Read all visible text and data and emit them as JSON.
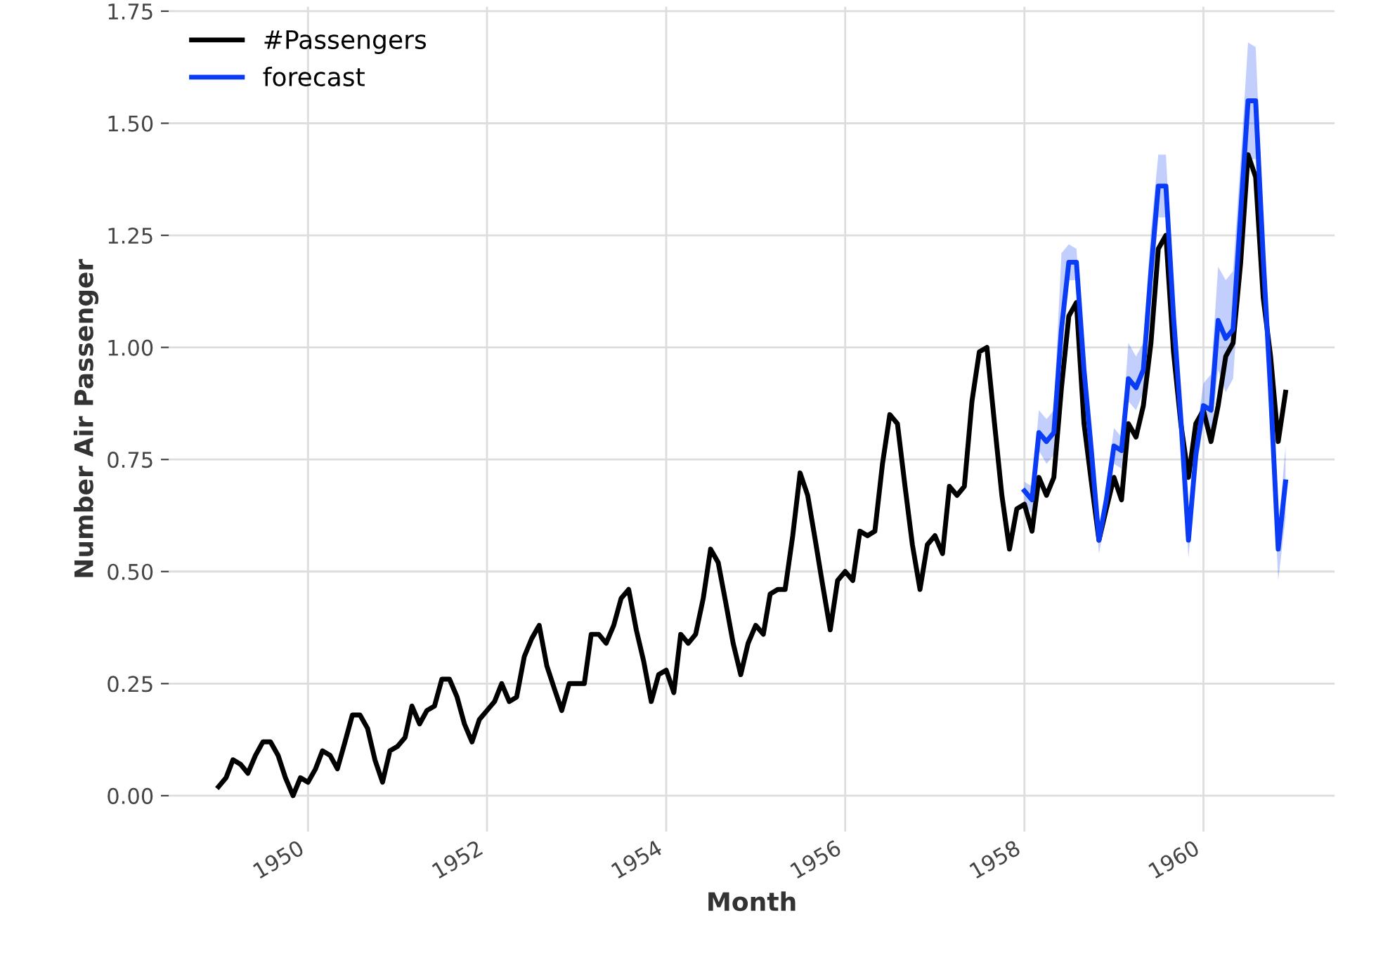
{
  "chart_data": {
    "type": "line",
    "xlabel": "Month",
    "ylabel": "Number Air Passenger",
    "x": [
      "1949-01",
      "1949-02",
      "1949-03",
      "1949-04",
      "1949-05",
      "1949-06",
      "1949-07",
      "1949-08",
      "1949-09",
      "1949-10",
      "1949-11",
      "1949-12",
      "1950-01",
      "1950-02",
      "1950-03",
      "1950-04",
      "1950-05",
      "1950-06",
      "1950-07",
      "1950-08",
      "1950-09",
      "1950-10",
      "1950-11",
      "1950-12",
      "1951-01",
      "1951-02",
      "1951-03",
      "1951-04",
      "1951-05",
      "1951-06",
      "1951-07",
      "1951-08",
      "1951-09",
      "1951-10",
      "1951-11",
      "1951-12",
      "1952-01",
      "1952-02",
      "1952-03",
      "1952-04",
      "1952-05",
      "1952-06",
      "1952-07",
      "1952-08",
      "1952-09",
      "1952-10",
      "1952-11",
      "1952-12",
      "1953-01",
      "1953-02",
      "1953-03",
      "1953-04",
      "1953-05",
      "1953-06",
      "1953-07",
      "1953-08",
      "1953-09",
      "1953-10",
      "1953-11",
      "1953-12",
      "1954-01",
      "1954-02",
      "1954-03",
      "1954-04",
      "1954-05",
      "1954-06",
      "1954-07",
      "1954-08",
      "1954-09",
      "1954-10",
      "1954-11",
      "1954-12",
      "1955-01",
      "1955-02",
      "1955-03",
      "1955-04",
      "1955-05",
      "1955-06",
      "1955-07",
      "1955-08",
      "1955-09",
      "1955-10",
      "1955-11",
      "1955-12",
      "1956-01",
      "1956-02",
      "1956-03",
      "1956-04",
      "1956-05",
      "1956-06",
      "1956-07",
      "1956-08",
      "1956-09",
      "1956-10",
      "1956-11",
      "1956-12",
      "1957-01",
      "1957-02",
      "1957-03",
      "1957-04",
      "1957-05",
      "1957-06",
      "1957-07",
      "1957-08",
      "1957-09",
      "1957-10",
      "1957-11",
      "1957-12",
      "1958-01",
      "1958-02",
      "1958-03",
      "1958-04",
      "1958-05",
      "1958-06",
      "1958-07",
      "1958-08",
      "1958-09",
      "1958-10",
      "1958-11",
      "1958-12",
      "1959-01",
      "1959-02",
      "1959-03",
      "1959-04",
      "1959-05",
      "1959-06",
      "1959-07",
      "1959-08",
      "1959-09",
      "1959-10",
      "1959-11",
      "1959-12",
      "1960-01",
      "1960-02",
      "1960-03",
      "1960-04",
      "1960-05",
      "1960-06",
      "1960-07",
      "1960-08",
      "1960-09",
      "1960-10",
      "1960-11",
      "1960-12"
    ],
    "series": [
      {
        "name": "#Passengers",
        "color": "#000000",
        "values": [
          0.02,
          0.04,
          0.08,
          0.07,
          0.05,
          0.09,
          0.12,
          0.12,
          0.09,
          0.04,
          0.0,
          0.04,
          0.03,
          0.06,
          0.1,
          0.09,
          0.06,
          0.12,
          0.18,
          0.18,
          0.15,
          0.08,
          0.03,
          0.1,
          0.11,
          0.13,
          0.2,
          0.16,
          0.19,
          0.2,
          0.26,
          0.26,
          0.22,
          0.16,
          0.12,
          0.17,
          0.19,
          0.21,
          0.25,
          0.21,
          0.22,
          0.31,
          0.35,
          0.38,
          0.29,
          0.24,
          0.19,
          0.25,
          0.25,
          0.25,
          0.36,
          0.36,
          0.34,
          0.38,
          0.44,
          0.46,
          0.37,
          0.3,
          0.21,
          0.27,
          0.28,
          0.23,
          0.36,
          0.34,
          0.36,
          0.44,
          0.55,
          0.52,
          0.43,
          0.34,
          0.27,
          0.34,
          0.38,
          0.36,
          0.45,
          0.46,
          0.46,
          0.58,
          0.72,
          0.67,
          0.57,
          0.47,
          0.37,
          0.48,
          0.5,
          0.48,
          0.59,
          0.58,
          0.59,
          0.74,
          0.85,
          0.83,
          0.69,
          0.56,
          0.46,
          0.56,
          0.58,
          0.54,
          0.69,
          0.67,
          0.69,
          0.88,
          0.99,
          1.0,
          0.83,
          0.67,
          0.55,
          0.64,
          0.65,
          0.59,
          0.71,
          0.67,
          0.71,
          0.91,
          1.07,
          1.1,
          0.83,
          0.7,
          0.57,
          0.64,
          0.71,
          0.66,
          0.83,
          0.8,
          0.87,
          1.01,
          1.22,
          1.25,
          0.99,
          0.83,
          0.71,
          0.83,
          0.86,
          0.79,
          0.87,
          0.98,
          1.01,
          1.19,
          1.43,
          1.38,
          1.11,
          0.98,
          0.79,
          0.9
        ]
      },
      {
        "name": "forecast",
        "color": "#0a3cf5",
        "x": [
          "1958-01",
          "1958-02",
          "1958-03",
          "1958-04",
          "1958-05",
          "1958-06",
          "1958-07",
          "1958-08",
          "1958-09",
          "1958-10",
          "1958-11",
          "1958-12",
          "1959-01",
          "1959-02",
          "1959-03",
          "1959-04",
          "1959-05",
          "1959-06",
          "1959-07",
          "1959-08",
          "1959-09",
          "1959-10",
          "1959-11",
          "1959-12",
          "1960-01",
          "1960-02",
          "1960-03",
          "1960-04",
          "1960-05",
          "1960-06",
          "1960-07",
          "1960-08",
          "1960-09",
          "1960-10",
          "1960-11",
          "1960-12"
        ],
        "values": [
          0.68,
          0.66,
          0.81,
          0.79,
          0.81,
          1.04,
          1.19,
          1.19,
          0.95,
          0.77,
          0.57,
          0.66,
          0.78,
          0.77,
          0.93,
          0.91,
          0.95,
          1.17,
          1.36,
          1.36,
          1.07,
          0.84,
          0.57,
          0.76,
          0.87,
          0.86,
          1.06,
          1.02,
          1.04,
          1.3,
          1.55,
          1.55,
          1.2,
          0.9,
          0.55,
          0.7
        ],
        "upper": [
          0.7,
          0.69,
          0.86,
          0.84,
          0.86,
          1.21,
          1.23,
          1.22,
          0.99,
          0.8,
          0.59,
          0.69,
          0.82,
          0.8,
          1.01,
          0.98,
          1.01,
          1.26,
          1.43,
          1.43,
          1.12,
          0.87,
          0.59,
          0.8,
          0.92,
          0.94,
          1.18,
          1.15,
          1.17,
          1.42,
          1.68,
          1.67,
          1.28,
          0.95,
          0.59,
          0.78
        ],
        "lower": [
          0.65,
          0.63,
          0.77,
          0.74,
          0.76,
          0.99,
          1.15,
          1.15,
          0.91,
          0.74,
          0.54,
          0.63,
          0.74,
          0.73,
          0.88,
          0.86,
          0.9,
          1.1,
          1.29,
          1.29,
          1.02,
          0.8,
          0.53,
          0.72,
          0.83,
          0.8,
          0.95,
          0.9,
          0.93,
          1.18,
          1.42,
          1.42,
          1.1,
          0.84,
          0.48,
          0.62
        ]
      }
    ],
    "xlim": [
      "1948-06-12",
      "1961-06-19"
    ],
    "xticks": [
      {
        "value": "1950-01",
        "label": "1950"
      },
      {
        "value": "1952-01",
        "label": "1952"
      },
      {
        "value": "1954-01",
        "label": "1954"
      },
      {
        "value": "1956-01",
        "label": "1956"
      },
      {
        "value": "1958-01",
        "label": "1958"
      },
      {
        "value": "1960-01",
        "label": "1960"
      }
    ],
    "ylim": [
      -0.08,
      1.76
    ],
    "yticks": [
      {
        "value": 0,
        "label": "0.00"
      },
      {
        "value": 0.25,
        "label": "0.25"
      },
      {
        "value": 0.5,
        "label": "0.50"
      },
      {
        "value": 0.75,
        "label": "0.75"
      },
      {
        "value": 1.0,
        "label": "1.00"
      },
      {
        "value": 1.25,
        "label": "1.25"
      },
      {
        "value": 1.5,
        "label": "1.50"
      },
      {
        "value": 1.75,
        "label": "1.75"
      }
    ],
    "grid": true,
    "legend": "top left",
    "marker": "none",
    "line_style": "solid"
  }
}
